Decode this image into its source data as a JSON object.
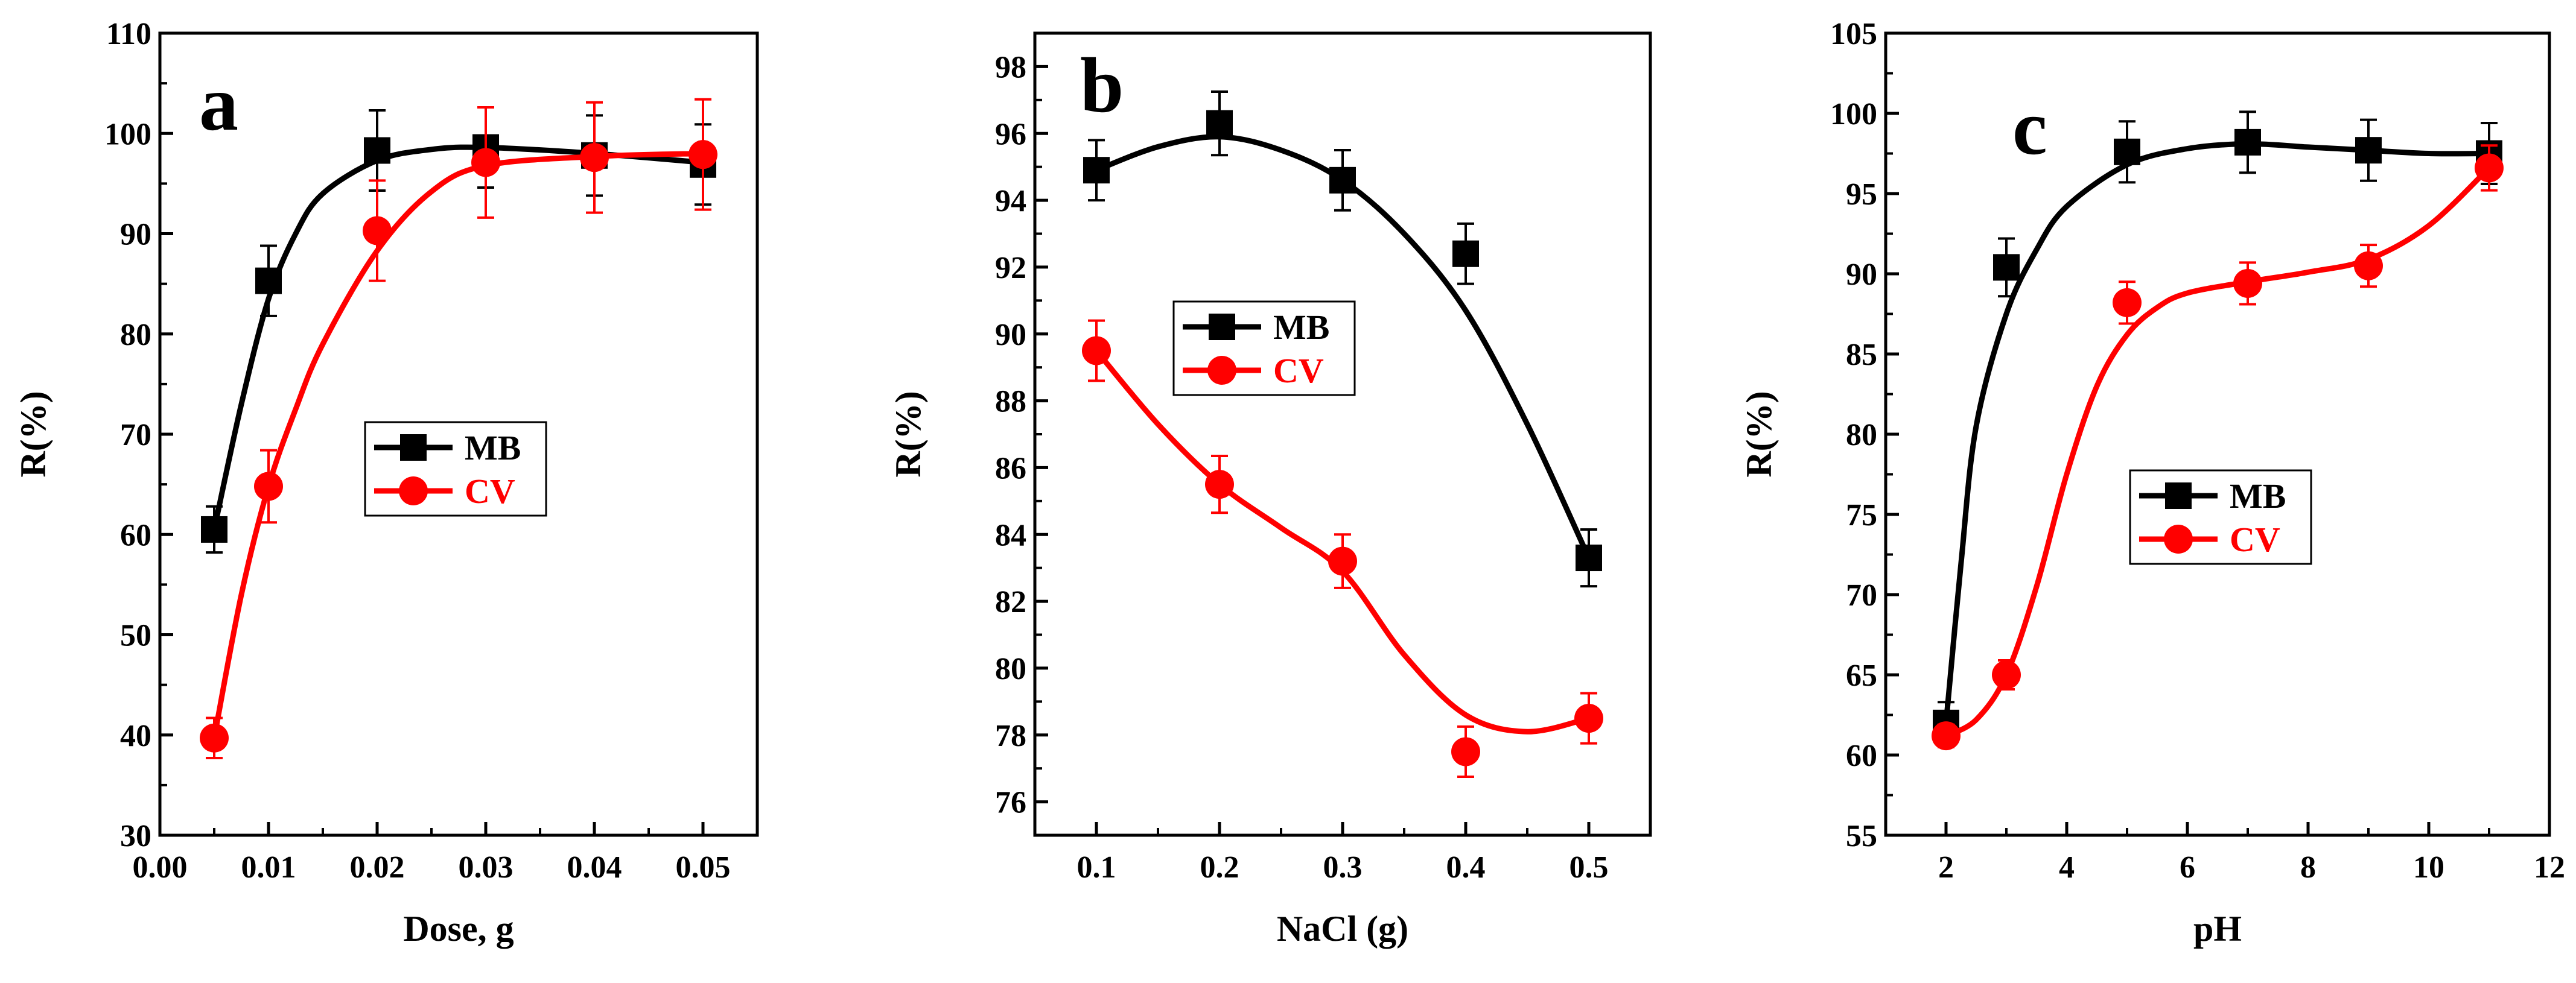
{
  "chart_data": [
    {
      "type": "line",
      "panel_label": "a",
      "xlabel": "Dose, g",
      "ylabel": "R(%)",
      "xlim": [
        0.0,
        0.055
      ],
      "ylim": [
        30,
        110
      ],
      "xticks": [
        0.0,
        0.01,
        0.02,
        0.03,
        0.04,
        0.05
      ],
      "xtick_labels": [
        "0.00",
        "0.01",
        "0.02",
        "0.03",
        "0.04",
        "0.05"
      ],
      "yticks": [
        30,
        40,
        50,
        60,
        70,
        80,
        90,
        100,
        110
      ],
      "ytick_labels": [
        "30",
        "40",
        "50",
        "60",
        "70",
        "80",
        "90",
        "100",
        "110"
      ],
      "legend_position": "center",
      "series": [
        {
          "name": "MB",
          "color": "#000000",
          "marker": "square",
          "x": [
            0.005,
            0.01,
            0.02,
            0.03,
            0.04,
            0.05
          ],
          "y": [
            60.5,
            85.3,
            98.3,
            98.6,
            97.8,
            96.9
          ],
          "err": [
            2.3,
            3.5,
            4.0,
            4.0,
            4.0,
            4.0
          ],
          "fit": [
            [
              0.005,
              60.5
            ],
            [
              0.0075,
              73
            ],
            [
              0.01,
              83.5
            ],
            [
              0.0125,
              90
            ],
            [
              0.015,
              94
            ],
            [
              0.02,
              97.3
            ],
            [
              0.025,
              98.4
            ],
            [
              0.03,
              98.6
            ],
            [
              0.04,
              98.0
            ],
            [
              0.05,
              97.1
            ]
          ]
        },
        {
          "name": "CV",
          "color": "#ff0000",
          "marker": "circle",
          "x": [
            0.005,
            0.01,
            0.02,
            0.03,
            0.04,
            0.05
          ],
          "y": [
            39.7,
            64.8,
            90.3,
            97.1,
            97.6,
            97.9
          ],
          "err": [
            2.0,
            3.6,
            5.0,
            5.5,
            5.5,
            5.5
          ],
          "fit": [
            [
              0.005,
              39.7
            ],
            [
              0.0075,
              54
            ],
            [
              0.01,
              64.8
            ],
            [
              0.0125,
              72.5
            ],
            [
              0.015,
              79
            ],
            [
              0.02,
              88.3
            ],
            [
              0.025,
              94.2
            ],
            [
              0.03,
              96.8
            ],
            [
              0.04,
              97.7
            ],
            [
              0.05,
              98.0
            ]
          ]
        }
      ]
    },
    {
      "type": "line",
      "panel_label": "b",
      "xlabel": "NaCl (g)",
      "ylabel": "R(%)",
      "xlim": [
        0.05,
        0.55
      ],
      "ylim": [
        75,
        99
      ],
      "xticks": [
        0.1,
        0.2,
        0.3,
        0.4,
        0.5
      ],
      "xtick_labels": [
        "0.1",
        "0.2",
        "0.3",
        "0.4",
        "0.5"
      ],
      "yticks": [
        76,
        78,
        80,
        82,
        84,
        86,
        88,
        90,
        92,
        94,
        96,
        98
      ],
      "ytick_labels": [
        "76",
        "78",
        "80",
        "82",
        "84",
        "86",
        "88",
        "90",
        "92",
        "94",
        "96",
        "98"
      ],
      "legend_position": "center",
      "series": [
        {
          "name": "MB",
          "color": "#000000",
          "marker": "square",
          "x": [
            0.1,
            0.2,
            0.3,
            0.4,
            0.5
          ],
          "y": [
            94.9,
            96.3,
            94.6,
            92.4,
            83.3
          ],
          "err": [
            0.9,
            0.95,
            0.9,
            0.9,
            0.85
          ],
          "fit": [
            [
              0.1,
              94.9
            ],
            [
              0.15,
              95.6
            ],
            [
              0.2,
              95.9
            ],
            [
              0.25,
              95.5
            ],
            [
              0.3,
              94.6
            ],
            [
              0.35,
              93.0
            ],
            [
              0.4,
              90.7
            ],
            [
              0.45,
              87.3
            ],
            [
              0.5,
              83.3
            ]
          ]
        },
        {
          "name": "CV",
          "color": "#ff0000",
          "marker": "circle",
          "x": [
            0.1,
            0.2,
            0.3,
            0.4,
            0.5
          ],
          "y": [
            89.5,
            85.5,
            83.2,
            77.5,
            78.5
          ],
          "err": [
            0.9,
            0.85,
            0.8,
            0.75,
            0.75
          ],
          "fit": [
            [
              0.1,
              89.5
            ],
            [
              0.15,
              87.3
            ],
            [
              0.2,
              85.5
            ],
            [
              0.25,
              84.2
            ],
            [
              0.3,
              82.9
            ],
            [
              0.35,
              80.4
            ],
            [
              0.4,
              78.6
            ],
            [
              0.45,
              78.1
            ],
            [
              0.5,
              78.5
            ]
          ]
        }
      ]
    },
    {
      "type": "line",
      "panel_label": "c",
      "xlabel": "pH",
      "ylabel": "R(%)",
      "xlim": [
        1,
        12
      ],
      "ylim": [
        55,
        105
      ],
      "xticks": [
        2,
        4,
        6,
        8,
        10,
        12
      ],
      "xtick_labels": [
        "2",
        "4",
        "6",
        "8",
        "10",
        "12"
      ],
      "yticks": [
        55,
        60,
        65,
        70,
        75,
        80,
        85,
        90,
        95,
        100,
        105
      ],
      "ytick_labels": [
        "55",
        "60",
        "65",
        "70",
        "75",
        "80",
        "85",
        "90",
        "95",
        "100",
        "105"
      ],
      "legend_position": "center",
      "series": [
        {
          "name": "MB",
          "color": "#000000",
          "marker": "square",
          "x": [
            2,
            3,
            5,
            7,
            9,
            11
          ],
          "y": [
            62.0,
            90.4,
            97.6,
            98.2,
            97.7,
            97.5
          ],
          "err": [
            1.3,
            1.8,
            1.9,
            1.9,
            1.9,
            1.9
          ],
          "fit": [
            [
              2,
              62.0
            ],
            [
              2.25,
              72
            ],
            [
              2.5,
              80.5
            ],
            [
              3,
              87.5
            ],
            [
              3.5,
              91.5
            ],
            [
              4,
              94.2
            ],
            [
              5,
              96.8
            ],
            [
              6,
              97.8
            ],
            [
              7,
              98.1
            ],
            [
              8,
              97.9
            ],
            [
              9,
              97.7
            ],
            [
              10,
              97.5
            ],
            [
              11,
              97.5
            ]
          ]
        },
        {
          "name": "CV",
          "color": "#ff0000",
          "marker": "circle",
          "x": [
            2,
            3,
            5,
            7,
            9,
            11
          ],
          "y": [
            61.2,
            65.0,
            88.2,
            89.4,
            90.5,
            96.6
          ],
          "err": [
            0.7,
            0.9,
            1.3,
            1.3,
            1.3,
            1.4
          ],
          "fit": [
            [
              2,
              61.2
            ],
            [
              2.5,
              62.2
            ],
            [
              3,
              65.0
            ],
            [
              3.5,
              70.5
            ],
            [
              4,
              77.5
            ],
            [
              4.5,
              83.0
            ],
            [
              5,
              86.2
            ],
            [
              5.5,
              87.9
            ],
            [
              6,
              88.8
            ],
            [
              7,
              89.5
            ],
            [
              8,
              90.1
            ],
            [
              9,
              90.9
            ],
            [
              10,
              93.0
            ],
            [
              11,
              96.6
            ]
          ]
        }
      ]
    }
  ]
}
